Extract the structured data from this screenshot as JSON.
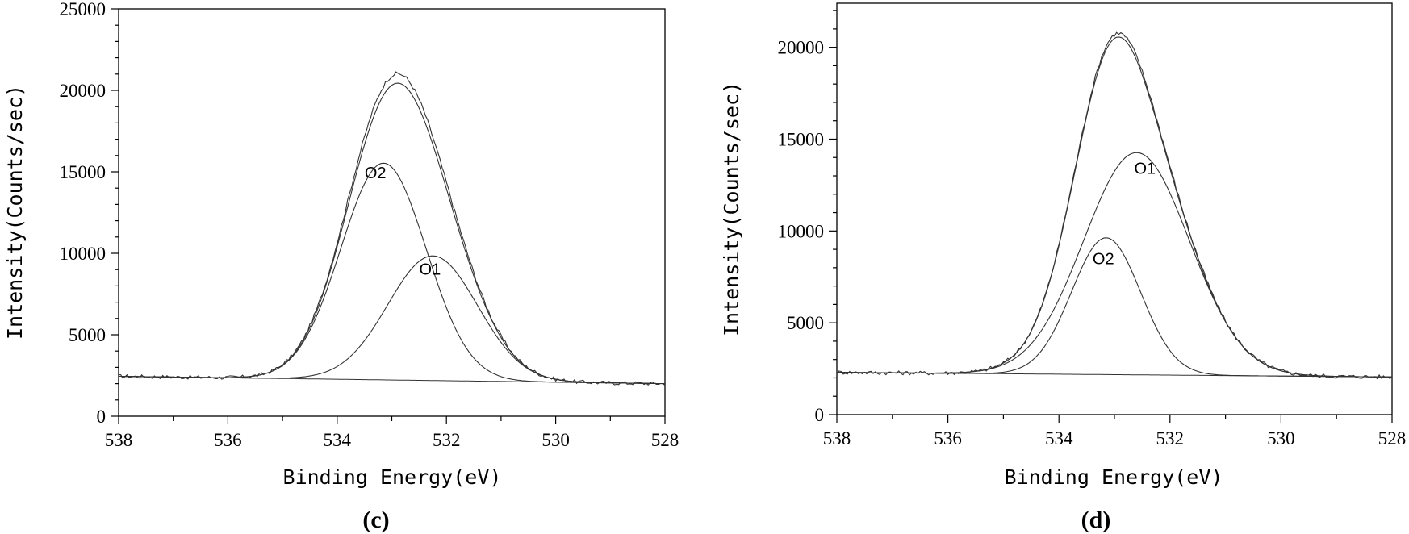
{
  "chart_data": [
    {
      "type": "line",
      "panel": "(c)",
      "xlabel": "Binding Energy(eV)",
      "ylabel": "Intensity(Counts/sec)",
      "xlim": [
        538,
        528
      ],
      "ylim": [
        0,
        25000
      ],
      "x_ticks": [
        538,
        536,
        534,
        532,
        530,
        528
      ],
      "y_ticks": [
        0,
        5000,
        10000,
        15000,
        20000,
        25000
      ],
      "background": {
        "left": 2450,
        "right": 2000
      },
      "components": [
        {
          "name": "O2",
          "center": 533.15,
          "height": 13300,
          "sigma": 0.78,
          "label_x": 533.3,
          "label_y": 14600
        },
        {
          "name": "O1",
          "center": 532.25,
          "height": 7650,
          "sigma": 0.82,
          "label_x": 532.3,
          "label_y": 8700
        }
      ],
      "series": [
        {
          "name": "Raw data",
          "kind": "raw",
          "noise": 120
        },
        {
          "name": "Envelope fit",
          "kind": "envelope"
        },
        {
          "name": "Background",
          "kind": "background"
        }
      ],
      "raw_peak": 21100
    },
    {
      "type": "line",
      "panel": "(d)",
      "xlabel": "Binding Energy(eV)",
      "ylabel": "Intensity(Counts/sec)",
      "xlim": [
        538,
        528
      ],
      "ylim": [
        0,
        22400
      ],
      "x_ticks": [
        538,
        536,
        534,
        532,
        530,
        528
      ],
      "y_ticks": [
        0,
        5000,
        10000,
        15000,
        20000
      ],
      "background": {
        "left": 2300,
        "right": 2050
      },
      "components": [
        {
          "name": "O1",
          "center": 532.6,
          "height": 12100,
          "sigma": 0.95,
          "label_x": 532.45,
          "label_y": 13100
        },
        {
          "name": "O2",
          "center": 533.15,
          "height": 7450,
          "sigma": 0.62,
          "label_x": 533.2,
          "label_y": 8200
        }
      ],
      "series": [
        {
          "name": "Raw data",
          "kind": "raw",
          "noise": 110
        },
        {
          "name": "Envelope fit",
          "kind": "envelope"
        },
        {
          "name": "Background",
          "kind": "background"
        }
      ],
      "raw_peak": 20800
    }
  ]
}
